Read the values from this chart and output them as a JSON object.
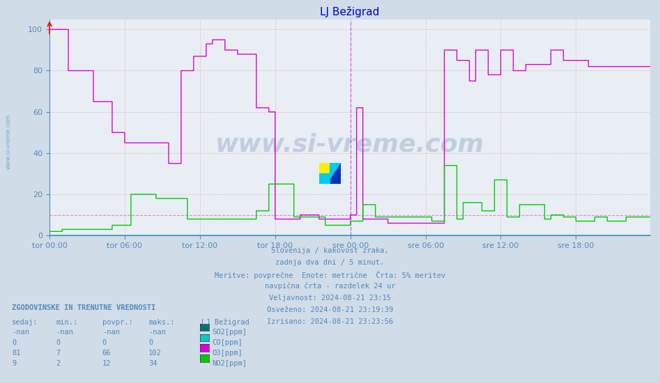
{
  "title": "LJ Bežigrad",
  "title_color": "#0000cc",
  "bg_color": "#d0dce8",
  "plot_bg_color": "#e8eef4",
  "grid_color": "#c8c8e8",
  "grid_color_h": "#e0c8c8",
  "ylim": [
    0,
    105
  ],
  "yticks": [
    0,
    20,
    40,
    60,
    80,
    100
  ],
  "tick_color": "#5588bb",
  "xtick_labels": [
    "tor 00:00",
    "tor 06:00",
    "tor 12:00",
    "tor 18:00",
    "sre 00:00",
    "sre 06:00",
    "sre 12:00",
    "sre 18:00"
  ],
  "n_points": 576,
  "colors": {
    "SO2": "#007070",
    "CO": "#00cccc",
    "O3": "#dd00dd",
    "NO2": "#00cc00"
  },
  "line_width": 1.0,
  "dashed_hline_y": 10,
  "dashed_hline_color": "#dd88dd",
  "axis_color": "#5588bb",
  "watermark": "www.si-vreme.com",
  "watermark_color": "#1a3a8a",
  "watermark_alpha": 0.18,
  "footer_lines": [
    "Slovenija / kakovost zraka,",
    "zadnja dva dni / 5 minut.",
    "Meritve: povprečne  Enote: metrične  Črta: 5% meritev",
    "navpična črta - razdelek 24 ur",
    "Veljavnost: 2024-08-21 23:15",
    "Osveženo: 2024-08-21 23:19:39",
    "Izrisano: 2024-08-21 23:23:56"
  ],
  "footer_color": "#5588bb",
  "table_header": "ZGODOVINSKE IN TRENUTNE VREDNOSTI",
  "table_cols": [
    "sedaj:",
    "min.:",
    "povpr.:",
    "maks.:",
    "LJ Bežigrad"
  ],
  "table_data": [
    [
      "-nan",
      "-nan",
      "-nan",
      "-nan",
      "SO2[ppm]"
    ],
    [
      "0",
      "0",
      "0",
      "0",
      "CO[ppm]"
    ],
    [
      "81",
      "7",
      "66",
      "102",
      "O3[ppm]"
    ],
    [
      "9",
      "2",
      "12",
      "34",
      "NO2[ppm]"
    ]
  ],
  "legend_colors": [
    "#007070",
    "#00cccc",
    "#dd00dd",
    "#00cc00"
  ],
  "logo_colors": [
    "#ffff00",
    "#00ccff",
    "#0033cc"
  ]
}
